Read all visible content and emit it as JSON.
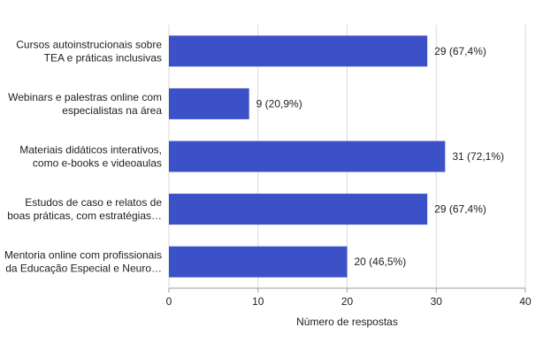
{
  "chart_data": {
    "type": "bar",
    "orientation": "horizontal",
    "categories": [
      [
        "Cursos autoinstrucionais sobre",
        "TEA e práticas inclusivas"
      ],
      [
        "Webinars e palestras online com",
        "especialistas na área"
      ],
      [
        "Materiais didáticos interativos,",
        "como e-books e videoaulas"
      ],
      [
        "Estudos de caso e relatos de",
        "boas práticas, com estratégias…"
      ],
      [
        "Mentoria online com profissionais",
        "da Educação Especial e Neuro…"
      ]
    ],
    "values": [
      29,
      9,
      31,
      29,
      20
    ],
    "data_labels": [
      "29 (67,4%)",
      "9 (20,9%)",
      "31 (72,1%)",
      "29 (67,4%)",
      "20 (46,5%)"
    ],
    "xlabel": "Número de respostas",
    "xlim": [
      0,
      40
    ],
    "xticks": [
      0,
      10,
      20,
      30,
      40
    ],
    "grid": "vertical",
    "bar_color": "#3c50c8",
    "grid_color": "#d9d9d9"
  }
}
